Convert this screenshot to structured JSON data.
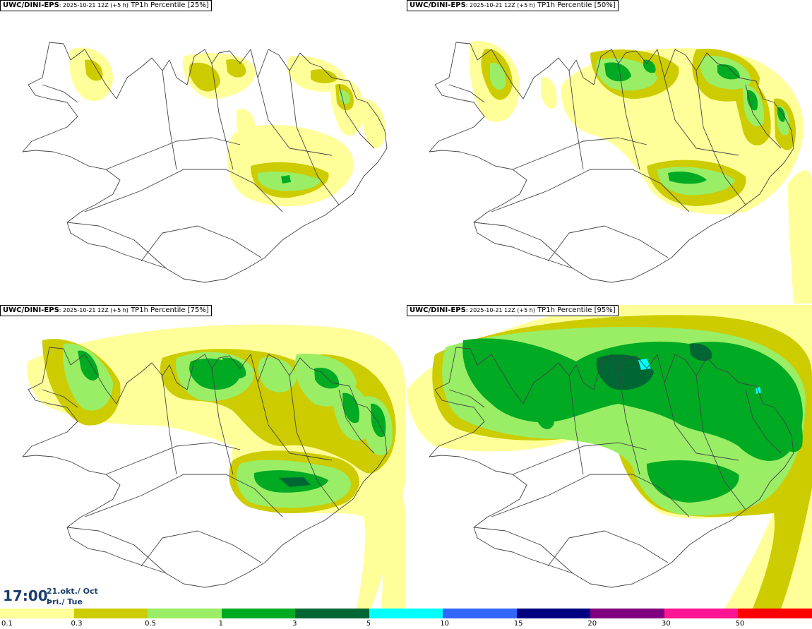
{
  "panels": [
    {
      "source": "UWC/DINI-EPS",
      "run": ": 2025-10-21 12Z (+5 h)",
      "field": "TP1h Percentile",
      "percentile": "[25%]"
    },
    {
      "source": "UWC/DINI-EPS",
      "run": ": 2025-10-21 12Z (+5 h)",
      "field": "TP1h Percentile",
      "percentile": "[50%]"
    },
    {
      "source": "UWC/DINI-EPS",
      "run": ": 2025-10-21 12Z (+5 h)",
      "field": "TP1h Percentile",
      "percentile": "[75%]"
    },
    {
      "source": "UWC/DINI-EPS",
      "run": ": 2025-10-21 12Z (+5 h)",
      "field": "TP1h Percentile",
      "percentile": "[95%]"
    }
  ],
  "valid_time": {
    "time": "17:00",
    "date_line1": "21.okt./ Oct",
    "date_line2": "Þri./ Tue"
  },
  "legend": {
    "ticks": [
      "0.1",
      "0.3",
      "0.5",
      "1",
      "3",
      "5",
      "10",
      "15",
      "20",
      "30",
      "50"
    ],
    "colors": [
      "#ffff99",
      "#cccc00",
      "#99ee66",
      "#00aa22",
      "#006633",
      "#00ffff",
      "#3366ff",
      "#000080",
      "#800080",
      "#ff1493",
      "#ff0000"
    ]
  },
  "colors": {
    "c1": "#ffff99",
    "c2": "#cccc00",
    "c3": "#99ee66",
    "c4": "#00aa22",
    "c5": "#006633",
    "c6": "#00ffff"
  }
}
